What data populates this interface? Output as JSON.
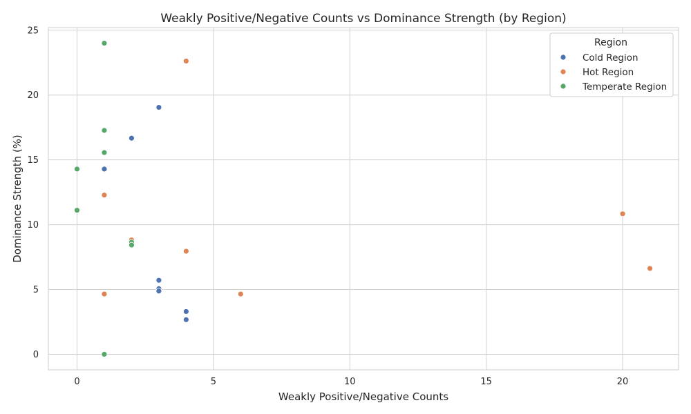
{
  "chart_data": {
    "type": "scatter",
    "title": "Weakly Positive/Negative Counts vs Dominance Strength (by Region)",
    "xlabel": "Weakly Positive/Negative Counts",
    "ylabel": "Dominance Strength (%)",
    "xlim": [
      -1.05,
      22.05
    ],
    "ylim": [
      -1.2,
      25.2
    ],
    "xticks": [
      0,
      5,
      10,
      15,
      20
    ],
    "yticks": [
      0,
      5,
      10,
      15,
      20,
      25
    ],
    "grid": true,
    "legend": {
      "title": "Region",
      "position": "top-right"
    },
    "series": [
      {
        "name": "Cold Region",
        "color": "#4c72b0",
        "points": [
          {
            "x": 3,
            "y": 19.05
          },
          {
            "x": 2,
            "y": 16.67
          },
          {
            "x": 1,
            "y": 14.29
          },
          {
            "x": 3,
            "y": 5.71
          },
          {
            "x": 3,
            "y": 5.06
          },
          {
            "x": 3,
            "y": 4.88
          },
          {
            "x": 4,
            "y": 3.3
          },
          {
            "x": 4,
            "y": 2.67
          }
        ]
      },
      {
        "name": "Hot Region",
        "color": "#dd8452",
        "points": [
          {
            "x": 4,
            "y": 22.62
          },
          {
            "x": 1,
            "y": 12.28
          },
          {
            "x": 2,
            "y": 8.82
          },
          {
            "x": 4,
            "y": 7.95
          },
          {
            "x": 1,
            "y": 4.65
          },
          {
            "x": 6,
            "y": 4.65
          },
          {
            "x": 20,
            "y": 10.84
          },
          {
            "x": 21,
            "y": 6.62
          }
        ]
      },
      {
        "name": "Temperate Region",
        "color": "#55a868",
        "points": [
          {
            "x": 1,
            "y": 24.0
          },
          {
            "x": 1,
            "y": 17.27
          },
          {
            "x": 1,
            "y": 15.56
          },
          {
            "x": 0,
            "y": 14.29
          },
          {
            "x": 0,
            "y": 11.11
          },
          {
            "x": 2,
            "y": 8.65
          },
          {
            "x": 2,
            "y": 8.43
          },
          {
            "x": 1,
            "y": 0.0
          }
        ]
      }
    ]
  }
}
